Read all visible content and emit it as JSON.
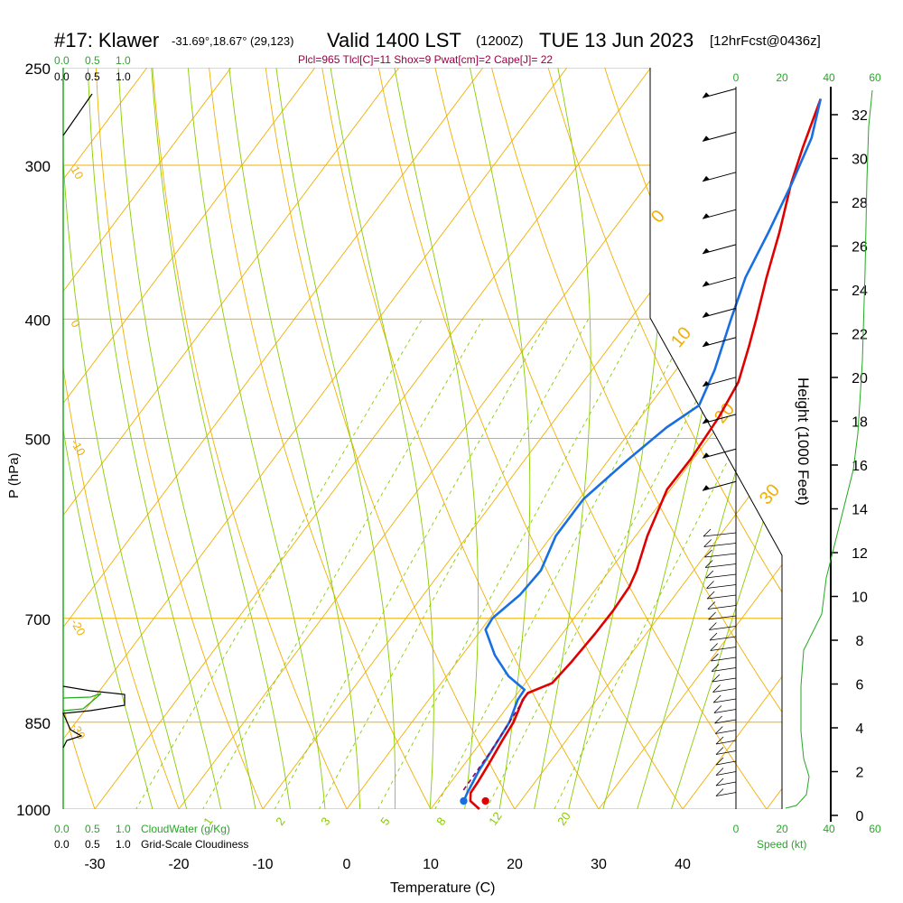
{
  "header": {
    "station": "#17: Klawer",
    "coords": "-31.69°,18.67° (29,123)",
    "valid": "Valid 1400 LST",
    "zulu": "(1200Z)",
    "date": "TUE 13 Jun 2023",
    "forecast": "[12hrFcst@0436z]",
    "indices": "Plcl=965 Tlcl[C]=11 Shox=9 Pwat[cm]=2 Cape[J]= 22"
  },
  "colors": {
    "temperature": "#e00000",
    "dewpoint": "#1a6fe0",
    "parcel": "#8b0060",
    "isotherm": "#f0b000",
    "dry_adiabat": "#f0b000",
    "moist_adiabat": "#88cc00",
    "mixing_ratio": "#88cc00",
    "cloud_water": "#22aa22",
    "height_profile": "#22aa22",
    "indices_text": "#990044"
  },
  "chart_data": {
    "type": "skew-t",
    "xlabel": "Temperature (C)",
    "ylabel": "P (hPa)",
    "y2label": "Height (1000 Feet)",
    "x_ticks": [
      -30,
      -20,
      -10,
      0,
      10,
      20,
      30,
      40
    ],
    "pressure_ticks": [
      250,
      300,
      400,
      500,
      700,
      850,
      1000
    ],
    "height_ticks": [
      0,
      2,
      4,
      6,
      8,
      10,
      12,
      14,
      16,
      18,
      20,
      22,
      24,
      26,
      28,
      30,
      32
    ],
    "isotherm_labels": [
      10,
      0,
      -10,
      -20,
      -30,
      0,
      10,
      20,
      30
    ],
    "mixing_ratio_labels": [
      1,
      2,
      3,
      5,
      8,
      12,
      20
    ],
    "temperature_profile": [
      {
        "p": 1000,
        "t": 15.8
      },
      {
        "p": 985,
        "t": 14.0
      },
      {
        "p": 970,
        "t": 13.3
      },
      {
        "p": 950,
        "t": 13.2
      },
      {
        "p": 920,
        "t": 12.9
      },
      {
        "p": 880,
        "t": 12.4
      },
      {
        "p": 850,
        "t": 12.1
      },
      {
        "p": 815,
        "t": 11.2
      },
      {
        "p": 805,
        "t": 11.2
      },
      {
        "p": 790,
        "t": 13.2
      },
      {
        "p": 760,
        "t": 13.6
      },
      {
        "p": 720,
        "t": 13.9
      },
      {
        "p": 690,
        "t": 14.0
      },
      {
        "p": 660,
        "t": 13.8
      },
      {
        "p": 640,
        "t": 13.2
      },
      {
        "p": 600,
        "t": 11.4
      },
      {
        "p": 550,
        "t": 9.6
      },
      {
        "p": 520,
        "t": 9.7
      },
      {
        "p": 480,
        "t": 9.3
      },
      {
        "p": 450,
        "t": 8.5
      },
      {
        "p": 420,
        "t": 6.5
      },
      {
        "p": 400,
        "t": 5.0
      },
      {
        "p": 370,
        "t": 2.5
      },
      {
        "p": 340,
        "t": 0.0
      },
      {
        "p": 310,
        "t": -3.0
      },
      {
        "p": 290,
        "t": -4.8
      },
      {
        "p": 265,
        "t": -7.0
      }
    ],
    "dewpoint_profile": [
      {
        "p": 985,
        "t": 13.2
      },
      {
        "p": 970,
        "t": 12.9
      },
      {
        "p": 950,
        "t": 12.6
      },
      {
        "p": 930,
        "t": 12.3
      },
      {
        "p": 880,
        "t": 11.9
      },
      {
        "p": 850,
        "t": 11.6
      },
      {
        "p": 815,
        "t": 10.6
      },
      {
        "p": 800,
        "t": 10.5
      },
      {
        "p": 780,
        "t": 7.4
      },
      {
        "p": 750,
        "t": 3.9
      },
      {
        "p": 715,
        "t": 0.5
      },
      {
        "p": 700,
        "t": 0.3
      },
      {
        "p": 670,
        "t": 1.5
      },
      {
        "p": 640,
        "t": 1.8
      },
      {
        "p": 600,
        "t": 0.5
      },
      {
        "p": 560,
        "t": 0.5
      },
      {
        "p": 520,
        "t": 2.3
      },
      {
        "p": 490,
        "t": 4.0
      },
      {
        "p": 470,
        "t": 5.9
      },
      {
        "p": 440,
        "t": 4.6
      },
      {
        "p": 400,
        "t": 2.0
      },
      {
        "p": 370,
        "t": 0.0
      },
      {
        "p": 340,
        "t": -1.3
      },
      {
        "p": 310,
        "t": -2.9
      },
      {
        "p": 285,
        "t": -4.6
      },
      {
        "p": 265,
        "t": -7.0
      }
    ],
    "parcel_path": [
      {
        "p": 965,
        "t": 12.2
      },
      {
        "p": 900,
        "t": 12.0
      },
      {
        "p": 850,
        "t": 11.6
      },
      {
        "p": 815,
        "t": 11.3
      }
    ],
    "surface_temperature": {
      "p": 985,
      "t": 15.8
    },
    "surface_dewpoint": {
      "p": 985,
      "t": 13.2
    },
    "cloudwater_axis": [
      0.0,
      0.5,
      1.0
    ],
    "wind_speed_axis": [
      0,
      20,
      40,
      60
    ],
    "cloudwater_label": "CloudWater (g/Kg)",
    "cloudiness_label": "Grid-Scale Cloudiness",
    "speed_label": "Speed (kt)"
  },
  "left_axis": {
    "top_green": [
      "0.0",
      "0.5",
      "1.0"
    ],
    "top_black": [
      "0.0",
      "0.5",
      "1.0"
    ],
    "bottom_green": [
      "0.0",
      "0.5",
      "1.0"
    ],
    "bottom_black": [
      "0.0",
      "0.5",
      "1.0"
    ]
  }
}
